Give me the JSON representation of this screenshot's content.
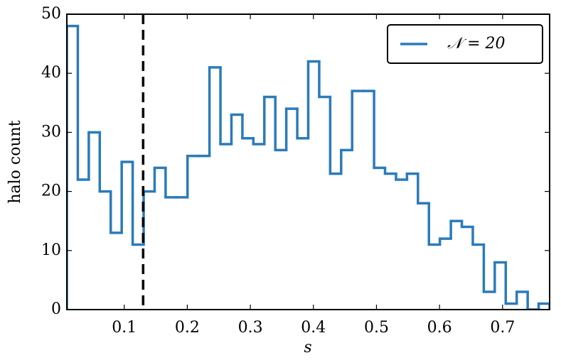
{
  "chart_data": {
    "type": "histogram",
    "xlabel": "s",
    "ylabel": "halo count",
    "bins": [
      0.009,
      0.0264,
      0.0438,
      0.0612,
      0.0786,
      0.096,
      0.1134,
      0.1308,
      0.1482,
      0.1656,
      0.183,
      0.2004,
      0.2178,
      0.2352,
      0.2526,
      0.27,
      0.2874,
      0.3048,
      0.3222,
      0.3396,
      0.357,
      0.3744,
      0.3918,
      0.4092,
      0.4266,
      0.444,
      0.4614,
      0.4788,
      0.4962,
      0.5136,
      0.531,
      0.5484,
      0.5658,
      0.5832,
      0.6006,
      0.618,
      0.6354,
      0.6528,
      0.6702,
      0.6876,
      0.705,
      0.7224,
      0.7398,
      0.7572,
      0.7746
    ],
    "series": [
      {
        "name": "𝒩 = 20",
        "color": "#2b7bba",
        "values": [
          48,
          22,
          30,
          20,
          13,
          25,
          11,
          20,
          24,
          19,
          19,
          26,
          26,
          41,
          28,
          33,
          29,
          28,
          36,
          27,
          34,
          29,
          42,
          36,
          23,
          27,
          37,
          37,
          24,
          23,
          22,
          23,
          18,
          11,
          12,
          15,
          14,
          11,
          3,
          8,
          1,
          3,
          0,
          1
        ]
      }
    ],
    "vline": {
      "value": 0.13,
      "color": "#000000"
    },
    "xlim": [
      0.009,
      0.7746
    ],
    "xticks": [
      0.1,
      0.2,
      0.3,
      0.4,
      0.5,
      0.6,
      0.7
    ],
    "ylim": [
      0,
      50
    ],
    "yticks": [
      0,
      10,
      20,
      30,
      40,
      50
    ],
    "legend": "upper right"
  }
}
